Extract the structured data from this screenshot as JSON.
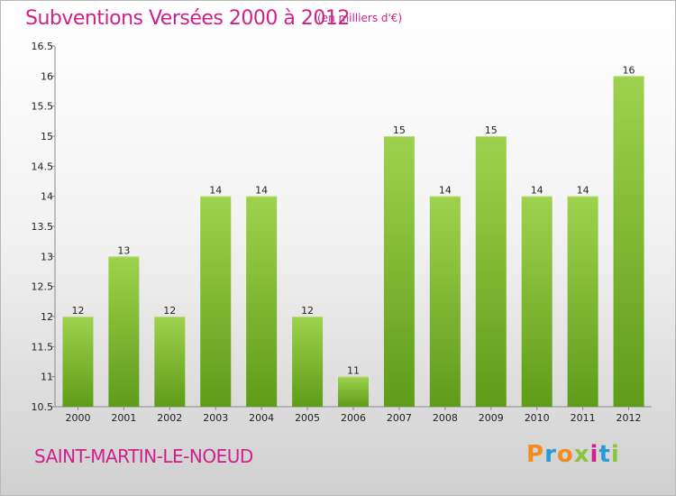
{
  "header": {
    "title": "Subventions Versées 2000 à 2012",
    "subtitle": "(en milliers d'€)"
  },
  "footer": {
    "commune": "SAINT-MARTIN-LE-NOEUD",
    "logo_letters": [
      "P",
      "r",
      "o",
      "x",
      "i",
      "t",
      "i"
    ],
    "logo_colors": [
      "#f28c1e",
      "#2a9ad6",
      "#f28c1e",
      "#8bc53f",
      "#d0208a",
      "#2a9ad6",
      "#8bc53f"
    ]
  },
  "colors": {
    "bar_top": "#9ed24e",
    "bar_bottom": "#5f9c18",
    "text_accent": "#d0208a"
  },
  "chart_data": {
    "type": "bar",
    "title": "Subventions Versées 2000 à 2012",
    "subtitle": "(en milliers d'€)",
    "categories": [
      "2000",
      "2001",
      "2002",
      "2003",
      "2004",
      "2005",
      "2006",
      "2007",
      "2008",
      "2009",
      "2010",
      "2011",
      "2012"
    ],
    "values": [
      12,
      13,
      12,
      14,
      14,
      12,
      11,
      15,
      14,
      15,
      14,
      14,
      16
    ],
    "data_labels": [
      "12",
      "13",
      "12",
      "14",
      "14",
      "12",
      "11",
      "15",
      "14",
      "15",
      "14",
      "14",
      "16"
    ],
    "ylim": [
      10.5,
      16.5
    ],
    "yticks": [
      10.5,
      11,
      11.5,
      12,
      12.5,
      13,
      13.5,
      14,
      14.5,
      15,
      15.5,
      16,
      16.5
    ],
    "ytick_labels": [
      "10.5",
      "11",
      "11.5",
      "12",
      "12.5",
      "13",
      "13.5",
      "14",
      "14.5",
      "15",
      "15.5",
      "16",
      "16.5"
    ],
    "grid": false,
    "legend": "none"
  }
}
